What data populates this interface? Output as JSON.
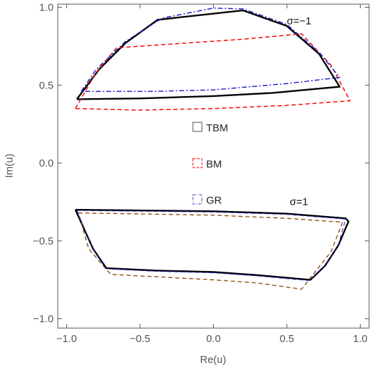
{
  "chart_data": {
    "type": "line",
    "xlabel": "Re(u)",
    "ylabel": "Im(u)",
    "xlim": [
      -1.06,
      1.06
    ],
    "ylim": [
      -1.06,
      1.02
    ],
    "xticks": [
      -1.0,
      -0.5,
      0.0,
      0.5,
      1.0
    ],
    "xtick_labels": [
      "−1.0",
      "−0.5",
      "0.0",
      "0.5",
      "1.0"
    ],
    "yticks": [
      -1.0,
      -0.5,
      0.0,
      0.5,
      1.0
    ],
    "ytick_labels": [
      "−1.0",
      "−0.5",
      "0.0",
      "0.5",
      "1.0"
    ],
    "grid": false,
    "legend_position": "center",
    "legend": [
      {
        "label": "TBM",
        "color": "#888888",
        "style": "solid"
      },
      {
        "label": "BM",
        "color": "#ff5555",
        "style": "dashed"
      },
      {
        "label": "GR",
        "color": "#7777dd",
        "style": "dashdot"
      }
    ],
    "annotations": [
      {
        "text": "σ=−1",
        "x": 0.5,
        "y": 0.89
      },
      {
        "text": "σ=1",
        "x": 0.52,
        "y": -0.27
      }
    ],
    "series": [
      {
        "color": "#000000",
        "style": "solid",
        "width": 2.4,
        "points": [
          [
            -0.93,
            0.41
          ],
          [
            -0.78,
            0.6
          ],
          [
            -0.6,
            0.77
          ],
          [
            -0.38,
            0.92
          ],
          [
            0.2,
            0.98
          ],
          [
            0.5,
            0.88
          ],
          [
            0.72,
            0.7
          ],
          [
            0.86,
            0.49
          ],
          [
            0.4,
            0.45
          ],
          [
            0.0,
            0.43
          ],
          [
            -0.5,
            0.415
          ],
          [
            -0.93,
            0.41
          ]
        ]
      },
      {
        "color": "#ff0000",
        "style": "dashed",
        "width": 1.5,
        "points": [
          [
            -0.94,
            0.35
          ],
          [
            -0.8,
            0.58
          ],
          [
            -0.66,
            0.74
          ],
          [
            0.2,
            0.795
          ],
          [
            0.6,
            0.83
          ],
          [
            0.8,
            0.63
          ],
          [
            0.93,
            0.4
          ],
          [
            0.5,
            0.37
          ],
          [
            0.0,
            0.35
          ],
          [
            -0.5,
            0.34
          ],
          [
            -0.94,
            0.35
          ]
        ]
      },
      {
        "color": "#2222cc",
        "style": "dashdot",
        "width": 1.5,
        "points": [
          [
            -0.9,
            0.46
          ],
          [
            -0.8,
            0.6
          ],
          [
            -0.6,
            0.78
          ],
          [
            -0.35,
            0.93
          ],
          [
            0.0,
            0.995
          ],
          [
            0.2,
            0.99
          ],
          [
            0.5,
            0.89
          ],
          [
            0.72,
            0.71
          ],
          [
            0.86,
            0.55
          ],
          [
            0.5,
            0.51
          ],
          [
            0.0,
            0.47
          ],
          [
            -0.4,
            0.46
          ],
          [
            -0.9,
            0.46
          ]
        ]
      },
      {
        "color": "#000000",
        "style": "solid",
        "width": 2.4,
        "points": [
          [
            -0.94,
            -0.3
          ],
          [
            0.0,
            -0.31
          ],
          [
            0.5,
            -0.325
          ],
          [
            0.9,
            -0.355
          ],
          [
            0.92,
            -0.375
          ],
          [
            0.85,
            -0.53
          ],
          [
            0.76,
            -0.66
          ],
          [
            0.66,
            -0.75
          ],
          [
            0.3,
            -0.72
          ],
          [
            0.0,
            -0.7
          ],
          [
            -0.4,
            -0.69
          ],
          [
            -0.73,
            -0.675
          ],
          [
            -0.82,
            -0.55
          ],
          [
            -0.94,
            -0.3
          ]
        ]
      },
      {
        "color": "#884400",
        "style": "dashed",
        "width": 1.3,
        "points": [
          [
            -0.92,
            -0.32
          ],
          [
            0.0,
            -0.335
          ],
          [
            0.5,
            -0.355
          ],
          [
            0.88,
            -0.38
          ],
          [
            0.8,
            -0.57
          ],
          [
            0.6,
            -0.81
          ],
          [
            0.3,
            -0.77
          ],
          [
            0.0,
            -0.75
          ],
          [
            -0.4,
            -0.73
          ],
          [
            -0.7,
            -0.715
          ],
          [
            -0.85,
            -0.55
          ],
          [
            -0.92,
            -0.32
          ]
        ]
      },
      {
        "color": "#2222cc",
        "style": "dashed",
        "width": 1.0,
        "points": [
          [
            -0.93,
            -0.305
          ],
          [
            0.0,
            -0.315
          ],
          [
            0.5,
            -0.33
          ],
          [
            0.9,
            -0.36
          ],
          [
            0.85,
            -0.53
          ],
          [
            0.76,
            -0.66
          ],
          [
            0.65,
            -0.755
          ],
          [
            0.3,
            -0.725
          ],
          [
            0.0,
            -0.705
          ],
          [
            -0.4,
            -0.695
          ],
          [
            -0.72,
            -0.68
          ],
          [
            -0.82,
            -0.55
          ],
          [
            -0.93,
            -0.305
          ]
        ]
      }
    ]
  }
}
